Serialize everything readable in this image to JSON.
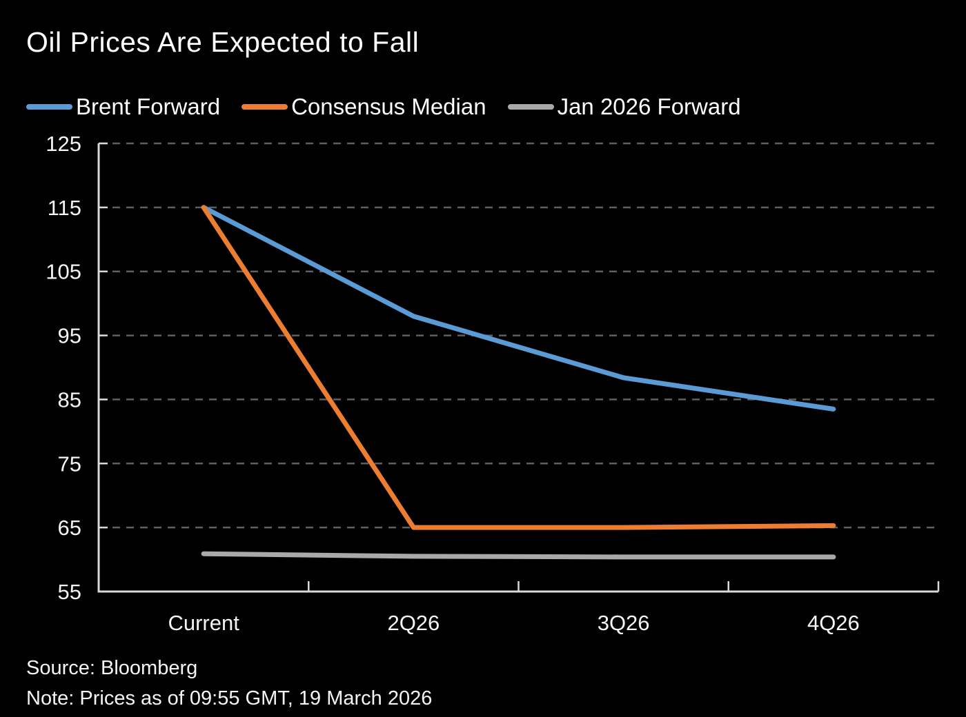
{
  "chart_data": {
    "type": "line",
    "title": "Oil Prices Are Expected to Fall",
    "categories": [
      "Current",
      "2Q26",
      "3Q26",
      "4Q26"
    ],
    "series": [
      {
        "name": "Brent Forward",
        "color": "#5b9bd5",
        "values": [
          115,
          98,
          88.4,
          83.5
        ]
      },
      {
        "name": "Consensus Median",
        "color": "#ed7d31",
        "values": [
          115,
          65,
          65,
          65.3
        ]
      },
      {
        "name": "Jan 2026 Forward",
        "color": "#a9a9a9",
        "values": [
          60.9,
          60.5,
          60.4,
          60.4
        ]
      }
    ],
    "ylim": [
      55,
      125
    ],
    "ytick_step": 10,
    "yticks": [
      55,
      65,
      75,
      85,
      95,
      105,
      115,
      125
    ],
    "grid": "dashed-horizontal",
    "legend_position": "top",
    "background": "#000000",
    "text_color": "#ffffff",
    "grid_color": "#5f5f5f",
    "axis_color": "#d9d9d9"
  },
  "source": "Source: Bloomberg",
  "note": "Note: Prices as of 09:55 GMT, 19 March 2026"
}
